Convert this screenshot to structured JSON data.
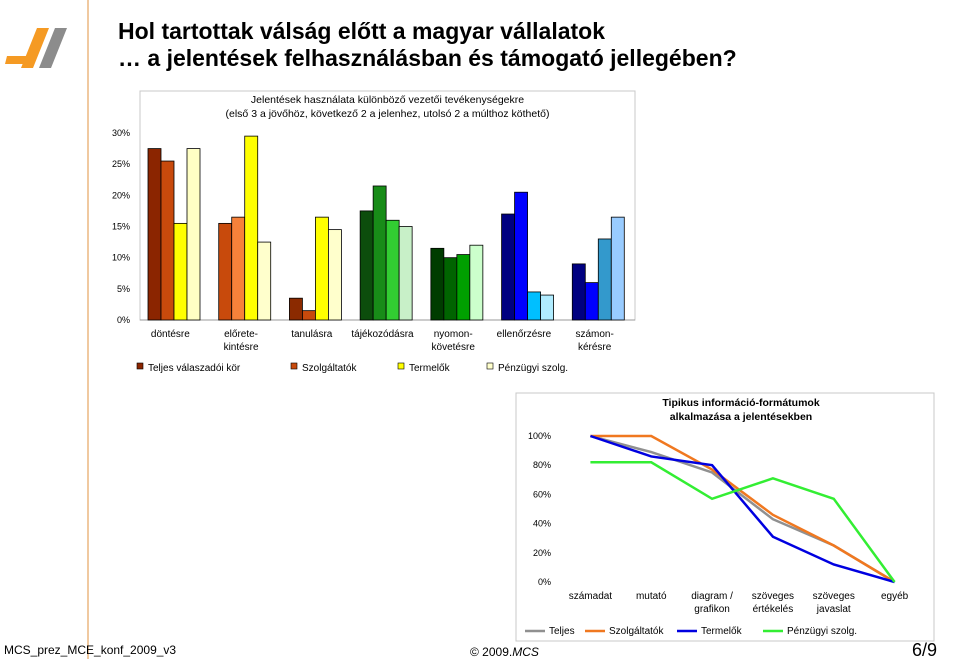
{
  "slide": {
    "title_line1": "Hol tartottak válság előtt a magyar vállalatok",
    "title_line2": "… a jelentések felhasználásban és támogató jellegében?",
    "footer_left": "MCS_prez_MCE_konf_2009_v3",
    "footer_copyright": "© 2009.",
    "footer_brand": "MCS",
    "page_number": "6/9"
  },
  "colors": {
    "accent": "#f0c9a0",
    "logo_orange": "#f59a23",
    "logo_gray": "#8c8c8c"
  },
  "chart_data": [
    {
      "type": "bar",
      "title": "Jelentések használata különböző vezetői tevékenységekre",
      "subtitle": "(első 3 a jövőhöz, következő 2 a jelenhez, utolsó 2 a múlthoz köthető)",
      "categories": [
        "döntésre",
        "előrete-\nkintésre",
        "tanulásra",
        "tájékozódásra",
        "nyomon-\nkövetésre",
        "ellenőrzésre",
        "számon-\nkérésre"
      ],
      "ylim": [
        0,
        30
      ],
      "yticks": [
        "0%",
        "5%",
        "10%",
        "15%",
        "20%",
        "25%",
        "30%"
      ],
      "legend_position": "bottom",
      "series": [
        {
          "name": "Teljes válaszadói kör",
          "values": [
            27.5,
            15.5,
            3.5,
            17.5,
            11.5,
            17.0,
            9.0
          ]
        },
        {
          "name": "Szolgáltatók",
          "values": [
            25.5,
            16.5,
            1.5,
            21.5,
            10.0,
            20.5,
            6.0
          ]
        },
        {
          "name": "Termelők",
          "values": [
            15.5,
            29.5,
            16.5,
            16.0,
            10.5,
            4.5,
            13.0
          ]
        },
        {
          "name": "Pénzügyi szolg.",
          "values": [
            27.5,
            12.5,
            14.5,
            15.0,
            12.0,
            4.0,
            16.5
          ]
        }
      ],
      "bar_colors": [
        [
          "#8b2500",
          "#c84a0c",
          "#ffff00",
          "#ffffc4"
        ],
        [
          "#c84a0c",
          "#f7813a",
          "#ffff00",
          "#ffffcc"
        ],
        [
          "#8b2a00",
          "#c84a0c",
          "#ffff00",
          "#ffffcc"
        ],
        [
          "#0c4d0c",
          "#188c18",
          "#32cd32",
          "#c8f0c8"
        ],
        [
          "#003c00",
          "#006400",
          "#00a000",
          "#ccffcc"
        ],
        [
          "#000080",
          "#0000ff",
          "#00bfff",
          "#b0ecff"
        ],
        [
          "#000080",
          "#0000ff",
          "#3399cc",
          "#99ccff"
        ]
      ]
    },
    {
      "type": "line",
      "title": "Tipikus információ-formátumok alkalmazása a jelentésekben",
      "categories": [
        "számadat",
        "mutató",
        "diagram /\ngrafikon",
        "szöveges\nértékelés",
        "szöveges\njavaslat",
        "egyéb"
      ],
      "ylim": [
        0,
        100
      ],
      "yticks": [
        "0%",
        "20%",
        "40%",
        "60%",
        "80%",
        "100%"
      ],
      "legend_position": "bottom",
      "series": [
        {
          "name": "Teljes",
          "color": "#909090",
          "values": [
            100,
            89,
            75,
            43,
            25,
            0
          ]
        },
        {
          "name": "Szolgáltatók",
          "color": "#f07820",
          "values": [
            100,
            100,
            77,
            46,
            25,
            0
          ]
        },
        {
          "name": "Termelők",
          "color": "#0000e0",
          "values": [
            100,
            86,
            80,
            31,
            12,
            0
          ]
        },
        {
          "name": "Pénzügyi szolg.",
          "color": "#33ee33",
          "values": [
            82,
            82,
            57,
            71,
            57,
            0
          ]
        }
      ]
    }
  ]
}
